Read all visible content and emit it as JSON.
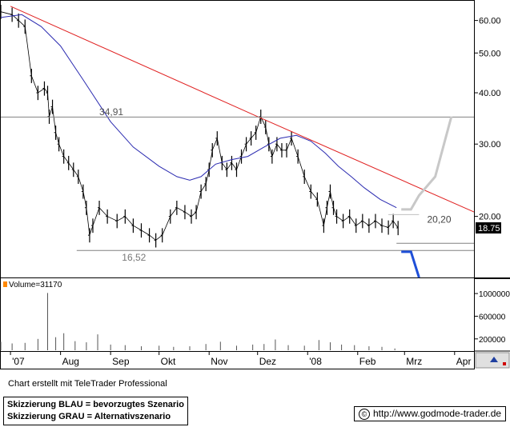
{
  "chart_data": [
    {
      "type": "line",
      "scale": "log",
      "ylim": [
        14.2,
        67
      ],
      "y_ticks": [
        {
          "value": 20,
          "label": "20.00"
        },
        {
          "value": 30,
          "label": "30.00"
        },
        {
          "value": 40,
          "label": "40.00"
        },
        {
          "value": 50,
          "label": "50.00"
        },
        {
          "value": 60,
          "label": "60.00"
        }
      ],
      "x_ticks": [
        {
          "date": "2007-07-01",
          "label": "'07"
        },
        {
          "date": "2007-08-01",
          "label": "Aug"
        },
        {
          "date": "2007-09-01",
          "label": "Sep"
        },
        {
          "date": "2007-10-01",
          "label": "Okt"
        },
        {
          "date": "2007-11-01",
          "label": "Nov"
        },
        {
          "date": "2007-12-01",
          "label": "Dez"
        },
        {
          "date": "2008-01-01",
          "label": "'08"
        },
        {
          "date": "2008-02-01",
          "label": "Feb"
        },
        {
          "date": "2008-03-01",
          "label": "Mrz"
        },
        {
          "date": "2008-04-01",
          "label": "Apr"
        }
      ],
      "xlim": [
        "2007-06-25",
        "2008-04-13"
      ],
      "last_price": "18.75",
      "series": [
        {
          "style": "ohlc",
          "color": "#000000",
          "x": [
            "2007-06-25",
            "2007-07-02",
            "2007-07-06",
            "2007-07-10",
            "2007-07-14",
            "2007-07-18",
            "2007-07-22",
            "2007-07-24",
            "2007-07-25",
            "2007-07-27",
            "2007-07-29",
            "2007-07-31",
            "2007-08-03",
            "2007-08-06",
            "2007-08-09",
            "2007-08-12",
            "2007-08-15",
            "2007-08-17",
            "2007-08-19",
            "2007-08-21",
            "2007-08-25",
            "2007-08-30",
            "2007-09-05",
            "2007-09-10",
            "2007-09-15",
            "2007-09-20",
            "2007-09-25",
            "2007-09-29",
            "2007-10-03",
            "2007-10-08",
            "2007-10-12",
            "2007-10-17",
            "2007-10-21",
            "2007-10-24",
            "2007-10-27",
            "2007-10-30",
            "2007-11-01",
            "2007-11-03",
            "2007-11-06",
            "2007-11-09",
            "2007-11-12",
            "2007-11-15",
            "2007-11-18",
            "2007-11-21",
            "2007-11-24",
            "2007-11-27",
            "2007-11-30",
            "2007-12-03",
            "2007-12-06",
            "2007-12-08",
            "2007-12-10",
            "2007-12-13",
            "2007-12-16",
            "2007-12-19",
            "2007-12-22",
            "2007-12-26",
            "2007-12-30",
            "2008-01-03",
            "2008-01-07",
            "2008-01-11",
            "2008-01-13",
            "2008-01-15",
            "2008-01-17",
            "2008-01-19",
            "2008-01-23",
            "2008-01-27",
            "2008-01-31",
            "2008-02-04",
            "2008-02-08",
            "2008-02-12",
            "2008-02-16",
            "2008-02-20",
            "2008-02-23",
            "2008-02-26"
          ],
          "y": [
            63,
            62,
            60,
            58,
            44,
            40,
            41,
            40,
            35,
            37,
            32,
            30,
            28,
            27,
            26,
            25,
            23,
            21,
            18,
            19,
            21,
            20,
            19.5,
            20,
            19,
            18.5,
            18,
            17.5,
            18,
            20,
            21,
            20.5,
            20,
            20.5,
            23,
            24,
            26,
            29,
            31,
            27,
            26,
            27,
            26,
            28,
            30,
            31,
            32,
            35,
            33,
            30,
            28,
            30,
            29,
            29,
            31,
            28,
            25,
            23,
            22,
            19,
            21,
            23,
            21,
            20,
            19.5,
            20,
            19,
            19.5,
            19,
            19.5,
            19,
            18.8,
            19.5,
            18.75
          ]
        },
        {
          "style": "line",
          "color": "#2a2ab0",
          "x": [
            "2007-06-25",
            "2007-07-08",
            "2007-07-20",
            "2007-08-01",
            "2007-08-15",
            "2007-09-01",
            "2007-09-15",
            "2007-10-01",
            "2007-10-12",
            "2007-10-20",
            "2007-10-27",
            "2007-11-05",
            "2007-11-15",
            "2007-11-25",
            "2007-12-05",
            "2007-12-15",
            "2007-12-25",
            "2008-01-03",
            "2008-01-12",
            "2008-01-20",
            "2008-01-28",
            "2008-02-05",
            "2008-02-15",
            "2008-02-25"
          ],
          "y": [
            61,
            62,
            58,
            52,
            43,
            34,
            29.5,
            26.5,
            25,
            24.5,
            25,
            26.8,
            27.5,
            28,
            29.5,
            31,
            31.5,
            30.5,
            28.5,
            26.5,
            25,
            23.5,
            22,
            21
          ]
        },
        {
          "style": "line",
          "color": "#e02020",
          "x": [
            "2007-07-01",
            "2007-12-01",
            "2008-04-13"
          ],
          "y": [
            65,
            35,
            20.5
          ]
        },
        {
          "style": "hline",
          "color": "#808080",
          "x": [
            "2007-06-25",
            "2008-04-13"
          ],
          "y": [
            34.91,
            34.91
          ]
        },
        {
          "style": "hline",
          "color": "#808080",
          "x": [
            "2007-08-11",
            "2008-04-13"
          ],
          "y": [
            16.52,
            16.52
          ]
        },
        {
          "style": "hline",
          "color": "#808080",
          "x": [
            "2008-02-25",
            "2008-04-13"
          ],
          "y": [
            17.2,
            17.2
          ]
        },
        {
          "style": "hline",
          "color": "#c0c0c0",
          "x": [
            "2008-02-20",
            "2008-03-10"
          ],
          "y": [
            20.2,
            20.2
          ]
        },
        {
          "style": "scenario",
          "color": "#c8c8c8",
          "x": [
            "2008-02-28",
            "2008-03-05",
            "2008-03-10",
            "2008-03-20",
            "2008-03-30"
          ],
          "y": [
            20.8,
            20.8,
            22.5,
            25,
            35
          ]
        },
        {
          "style": "scenario",
          "color": "#1f4fd8",
          "x": [
            "2008-02-28",
            "2008-03-05",
            "2008-03-10"
          ],
          "y": [
            16.4,
            16.4,
            14.2
          ]
        }
      ],
      "annotations": [
        {
          "text": "34,91",
          "x": "2007-08-25",
          "y": 35.3,
          "color": "#555555"
        },
        {
          "text": "16,52",
          "x": "2007-09-08",
          "y": 15.6,
          "color": "#777777"
        },
        {
          "text": "20,20",
          "x": "2008-03-15",
          "y": 19.3,
          "color": "#444444"
        }
      ]
    },
    {
      "type": "bar",
      "title": "Volume=31170",
      "ylim": [
        0,
        1100000
      ],
      "y_ticks": [
        {
          "value": 200000,
          "label": "200000"
        },
        {
          "value": 600000,
          "label": "600000"
        },
        {
          "value": 1000000,
          "label": "1000000"
        }
      ],
      "x": [
        "2007-06-25",
        "2007-07-02",
        "2007-07-10",
        "2007-07-18",
        "2007-07-24",
        "2007-07-29",
        "2007-08-03",
        "2007-08-10",
        "2007-08-17",
        "2007-08-24",
        "2007-09-01",
        "2007-09-10",
        "2007-09-20",
        "2007-10-01",
        "2007-10-10",
        "2007-10-20",
        "2007-10-30",
        "2007-11-08",
        "2007-11-18",
        "2007-11-28",
        "2007-12-05",
        "2007-12-12",
        "2007-12-20",
        "2007-12-30",
        "2008-01-08",
        "2008-01-15",
        "2008-01-22",
        "2008-01-30",
        "2008-02-08",
        "2008-02-16",
        "2008-02-24"
      ],
      "values": [
        150000,
        120000,
        130000,
        200000,
        1010000,
        230000,
        300000,
        160000,
        140000,
        280000,
        100000,
        90000,
        70000,
        80000,
        60000,
        70000,
        110000,
        150000,
        80000,
        100000,
        110000,
        190000,
        90000,
        80000,
        180000,
        140000,
        100000,
        90000,
        70000,
        60000,
        31170
      ]
    }
  ],
  "credit": "Chart erstellt mit TeleTrader Professional",
  "legend": {
    "blue": "Skizzierung BLAU = bevorzugtes Szenario",
    "grey": "Skizzierung GRAU = Alternativszenario"
  },
  "source": {
    "symbol": "©",
    "url": "http://www.godmode-trader.de"
  }
}
